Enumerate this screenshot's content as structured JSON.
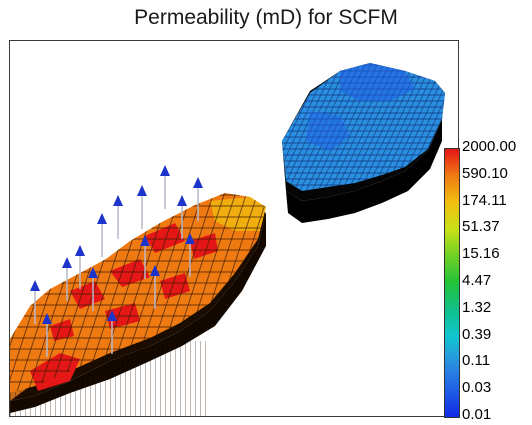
{
  "title": "Permeability (mD) for SCFM",
  "legend": {
    "labels": [
      "2000.00",
      "590.10",
      "174.11",
      "51.37",
      "15.16",
      "4.47",
      "1.32",
      "0.39",
      "0.11",
      "0.03",
      "0.01"
    ],
    "colors": [
      "#e41616",
      "#f07a12",
      "#f2c00f",
      "#c8e019",
      "#6fd125",
      "#22c23a",
      "#10c08a",
      "#10c6cf",
      "#2a8fe0",
      "#1f5fe6",
      "#1228e6"
    ]
  },
  "scene": {
    "left_block_color": "#f07a12",
    "high_perm_color": "#e41616",
    "right_block_color": "#2a8fe0",
    "well_color": "#1c33cc",
    "wells": 15
  }
}
